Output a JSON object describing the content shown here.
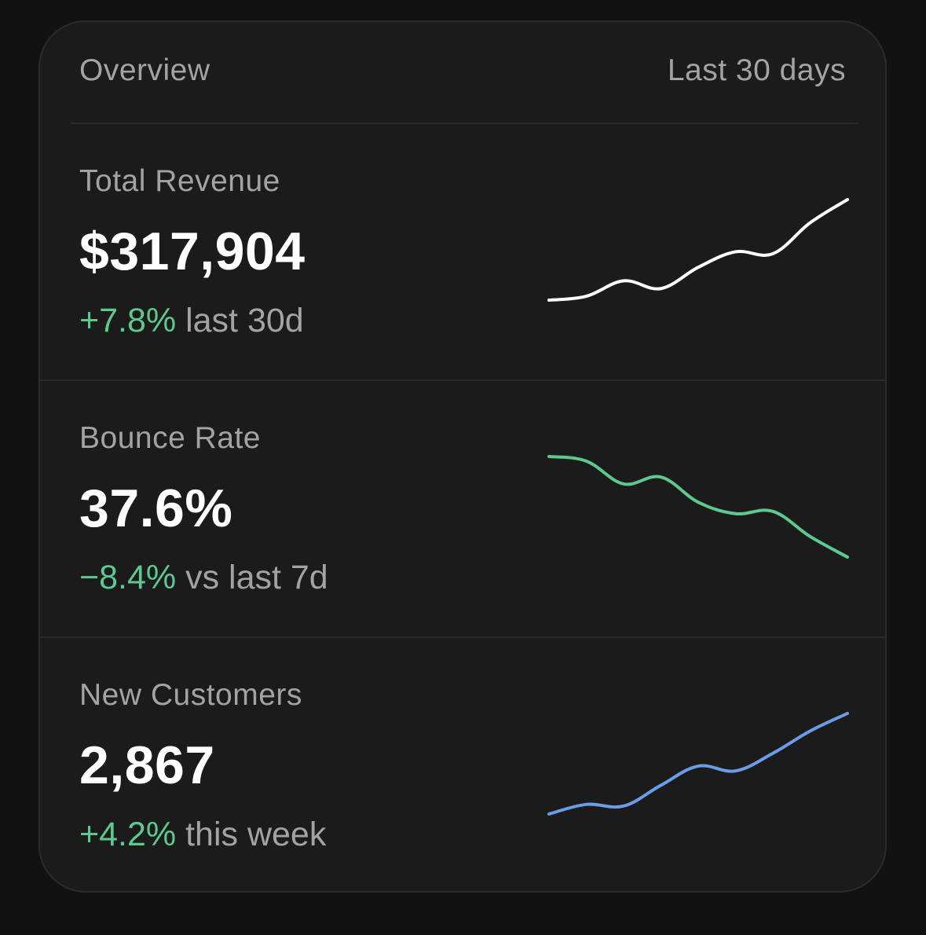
{
  "header": {
    "title": "Overview",
    "range": "Last 30 days"
  },
  "metrics": [
    {
      "label": "Total Revenue",
      "value": "$317,904",
      "delta": "+7.8%",
      "delta_context": "last 30d",
      "line_color": "#ffffff",
      "trend": [
        10,
        12,
        20,
        16,
        27,
        35,
        34,
        50,
        62
      ]
    },
    {
      "label": "Bounce Rate",
      "value": "37.6%",
      "delta": "−8.4%",
      "delta_context": "vs last 7d",
      "line_color": "#5ec98f",
      "trend": [
        60,
        58,
        48,
        51,
        40,
        35,
        36,
        25,
        16
      ]
    },
    {
      "label": "New Customers",
      "value": "2,867",
      "delta": "+4.2%",
      "delta_context": "this week",
      "line_color": "#6a9ce8",
      "trend": [
        20,
        26,
        25,
        38,
        50,
        47,
        58,
        72,
        83
      ]
    }
  ],
  "colors": {
    "positive": "#5ec98f",
    "card_bg": "#1b1b1b",
    "page_bg": "#121212"
  }
}
